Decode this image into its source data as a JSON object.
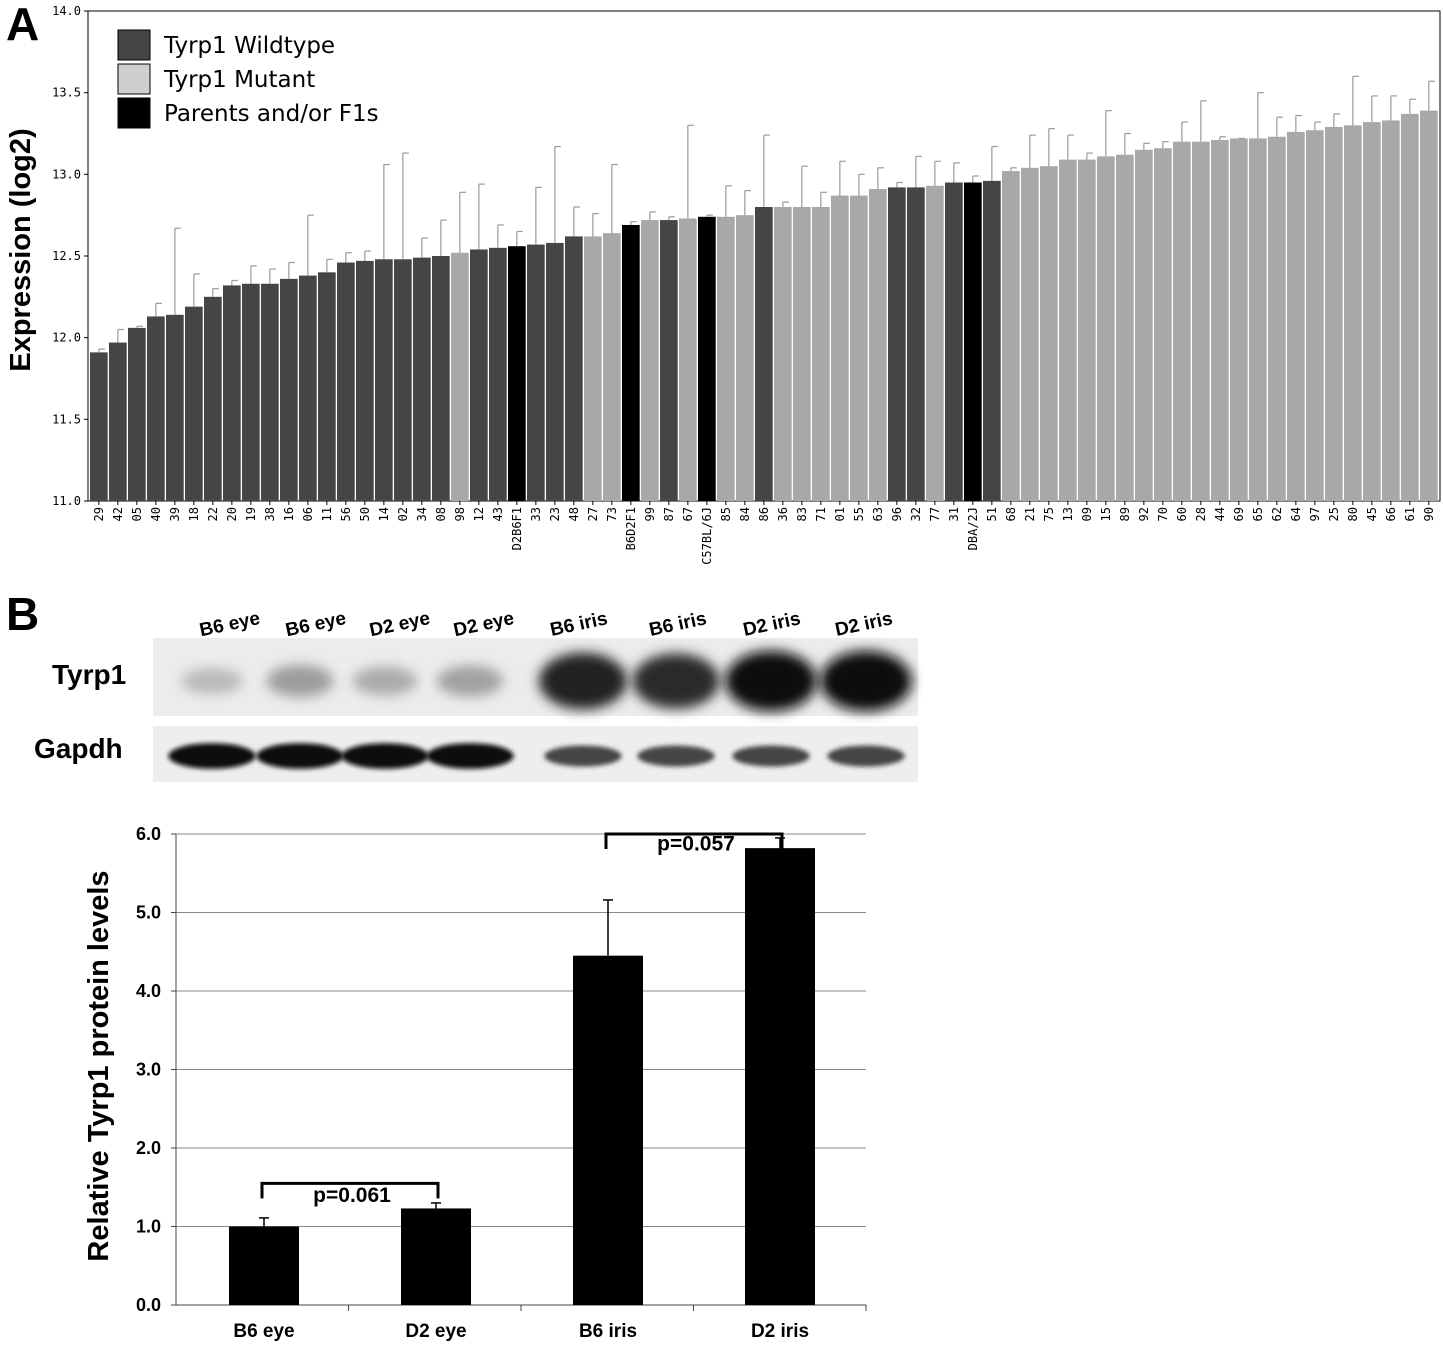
{
  "panel_a_letter": "A",
  "panel_b_letter": "B",
  "colors": {
    "wildtype": "#454545",
    "mutant": "#a8a8a8",
    "parents": "#000000",
    "error_bar": "#9a9a9a",
    "grid": "#888888"
  },
  "blot": {
    "lanes": [
      "B6 eye",
      "B6 eye",
      "D2 eye",
      "D2 eye",
      "B6 iris",
      "B6 iris",
      "D2 iris",
      "D2 iris"
    ],
    "row_labels": [
      "Tyrp1",
      "Gapdh"
    ],
    "tyrp1_band_intensity": [
      0.18,
      0.32,
      0.25,
      0.3,
      0.88,
      0.85,
      0.97,
      0.97
    ],
    "gapdh_band_intensity": [
      0.98,
      0.98,
      0.98,
      0.98,
      0.72,
      0.72,
      0.72,
      0.72
    ]
  },
  "chart_data": [
    {
      "type": "bar",
      "title": "",
      "xlabel": "",
      "ylabel": "Expression (log2)",
      "ylim": [
        11.0,
        14.0
      ],
      "yticks": [
        "11.0",
        "11.5",
        "12.0",
        "12.5",
        "13.0",
        "13.5",
        "14.0"
      ],
      "legend": {
        "placement": "top-left",
        "entries": [
          {
            "name": "Tyrp1 Wildtype",
            "group": "wildtype"
          },
          {
            "name": "Tyrp1 Mutant",
            "group": "mutant"
          },
          {
            "name": "Parents and/or F1s",
            "group": "parents"
          }
        ]
      },
      "categories": [
        "29",
        "42",
        "05",
        "40",
        "39",
        "18",
        "22",
        "20",
        "19",
        "38",
        "16",
        "06",
        "11",
        "56",
        "50",
        "14",
        "02",
        "34",
        "08",
        "98",
        "12",
        "43",
        "D2B6F1",
        "33",
        "23",
        "48",
        "27",
        "73",
        "B6D2F1",
        "99",
        "87",
        "67",
        "C57BL/6J",
        "85",
        "84",
        "86",
        "36",
        "83",
        "71",
        "01",
        "55",
        "63",
        "96",
        "32",
        "77",
        "31",
        "DBA/2J",
        "51",
        "68",
        "21",
        "75",
        "13",
        "09",
        "15",
        "89",
        "92",
        "70",
        "60",
        "28",
        "44",
        "69",
        "65",
        "62",
        "64",
        "97",
        "25",
        "80",
        "45",
        "66",
        "61",
        "90"
      ],
      "values": [
        11.91,
        11.97,
        12.06,
        12.13,
        12.14,
        12.19,
        12.25,
        12.32,
        12.33,
        12.33,
        12.36,
        12.38,
        12.4,
        12.46,
        12.47,
        12.48,
        12.48,
        12.49,
        12.5,
        12.52,
        12.54,
        12.55,
        12.56,
        12.57,
        12.58,
        12.62,
        12.62,
        12.64,
        12.69,
        12.72,
        12.72,
        12.73,
        12.74,
        12.74,
        12.75,
        12.8,
        12.8,
        12.8,
        12.8,
        12.87,
        12.87,
        12.91,
        12.92,
        12.92,
        12.93,
        12.95,
        12.95,
        12.96,
        13.02,
        13.04,
        13.05,
        13.09,
        13.09,
        13.11,
        13.12,
        13.15,
        13.16,
        13.2,
        13.2,
        13.21,
        13.22,
        13.22,
        13.23,
        13.26,
        13.27,
        13.29,
        13.3,
        13.32,
        13.33,
        13.37,
        13.39
      ],
      "error_top": [
        11.93,
        12.05,
        12.07,
        12.21,
        12.67,
        12.39,
        12.3,
        12.35,
        12.44,
        12.42,
        12.46,
        12.75,
        12.48,
        12.52,
        12.53,
        13.06,
        13.13,
        12.61,
        12.72,
        12.89,
        12.94,
        12.69,
        12.65,
        12.92,
        13.17,
        12.8,
        12.76,
        13.06,
        12.71,
        12.77,
        12.74,
        13.3,
        12.75,
        12.93,
        12.9,
        13.24,
        12.83,
        13.05,
        12.89,
        13.08,
        13.0,
        13.04,
        12.95,
        13.11,
        13.08,
        13.07,
        12.99,
        13.17,
        13.04,
        13.24,
        13.28,
        13.24,
        13.13,
        13.39,
        13.25,
        13.19,
        13.2,
        13.32,
        13.45,
        13.23,
        13.22,
        13.5,
        13.35,
        13.36,
        13.32,
        13.37,
        13.6,
        13.48,
        13.48,
        13.46,
        13.57
      ],
      "groups": [
        "w",
        "w",
        "w",
        "w",
        "w",
        "w",
        "w",
        "w",
        "w",
        "w",
        "w",
        "w",
        "w",
        "w",
        "w",
        "w",
        "w",
        "w",
        "w",
        "m",
        "w",
        "w",
        "p",
        "w",
        "w",
        "w",
        "m",
        "m",
        "p",
        "m",
        "w",
        "m",
        "p",
        "m",
        "m",
        "w",
        "m",
        "m",
        "m",
        "m",
        "m",
        "m",
        "w",
        "w",
        "m",
        "w",
        "p",
        "w",
        "m",
        "m",
        "m",
        "m",
        "m",
        "m",
        "m",
        "m",
        "m",
        "m",
        "m",
        "m",
        "m",
        "m",
        "m",
        "m",
        "m",
        "m",
        "m",
        "m",
        "m",
        "m",
        "m"
      ]
    },
    {
      "type": "bar",
      "title": "",
      "xlabel": "",
      "ylabel": "Relative Tyrp1 protein levels",
      "ylim": [
        0.0,
        6.0
      ],
      "yticks": [
        "0.0",
        "1.0",
        "2.0",
        "3.0",
        "4.0",
        "5.0",
        "6.0"
      ],
      "grid": true,
      "categories": [
        "B6 eye",
        "D2 eye",
        "B6 iris",
        "D2 iris"
      ],
      "values": [
        1.0,
        1.23,
        4.45,
        5.82
      ],
      "error_top": [
        1.11,
        1.3,
        5.16,
        5.95
      ],
      "annotations": [
        {
          "text": "p=0.061",
          "between": [
            "B6 eye",
            "D2 eye"
          ],
          "bracket_y": 1.55,
          "text_y": 1.4
        },
        {
          "text": "p=0.057",
          "between": [
            "B6 iris",
            "D2 iris"
          ],
          "bracket_y": 6.0,
          "text_y": 5.88
        }
      ]
    }
  ]
}
